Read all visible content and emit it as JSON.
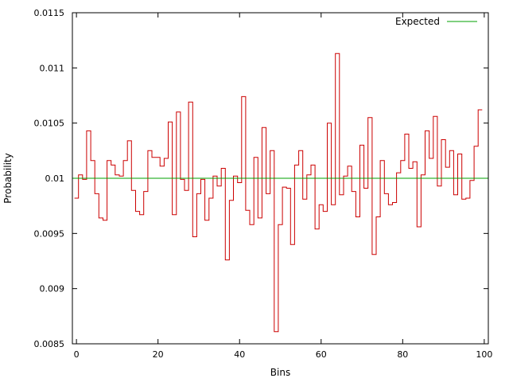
{
  "chart_data": {
    "type": "line",
    "step": true,
    "xlabel": "Bins",
    "ylabel": "Probability",
    "xlim": [
      -1,
      101
    ],
    "ylim": [
      0.0085,
      0.0115
    ],
    "xticks": [
      0,
      20,
      40,
      60,
      80,
      100
    ],
    "xtick_labels": [
      "0",
      "20",
      "40",
      "60",
      "80",
      "100"
    ],
    "yticks": [
      0.0085,
      0.009,
      0.0095,
      0.01,
      0.0105,
      0.011,
      0.0115
    ],
    "ytick_labels": [
      "0.0085",
      "0.009",
      "0.0095",
      "0.01",
      "0.0105",
      "0.011",
      "0.0115"
    ],
    "grid": false,
    "legend": {
      "placement": "top-right",
      "entries": [
        {
          "label": "Expected",
          "color": "#00a000"
        }
      ]
    },
    "series": [
      {
        "color": "#cc0000",
        "x": [
          0,
          1,
          2,
          3,
          4,
          5,
          6,
          7,
          8,
          9,
          10,
          11,
          12,
          13,
          14,
          15,
          16,
          17,
          18,
          19,
          20,
          21,
          22,
          23,
          24,
          25,
          26,
          27,
          28,
          29,
          30,
          31,
          32,
          33,
          34,
          35,
          36,
          37,
          38,
          39,
          40,
          41,
          42,
          43,
          44,
          45,
          46,
          47,
          48,
          49,
          50,
          51,
          52,
          53,
          54,
          55,
          56,
          57,
          58,
          59,
          60,
          61,
          62,
          63,
          64,
          65,
          66,
          67,
          68,
          69,
          70,
          71,
          72,
          73,
          74,
          75,
          76,
          77,
          78,
          79,
          80,
          81,
          82,
          83,
          84,
          85,
          86,
          87,
          88,
          89,
          90,
          91,
          92,
          93,
          94,
          95,
          96,
          97,
          98,
          99
        ],
        "y": [
          0.00982,
          0.01003,
          0.00999,
          0.01043,
          0.01016,
          0.00986,
          0.00964,
          0.00962,
          0.01016,
          0.01012,
          0.01003,
          0.01002,
          0.01016,
          0.01034,
          0.00989,
          0.0097,
          0.00967,
          0.00988,
          0.01025,
          0.01019,
          0.01019,
          0.01011,
          0.01018,
          0.01051,
          0.00967,
          0.0106,
          0.00999,
          0.00989,
          0.01069,
          0.00947,
          0.00986,
          0.00999,
          0.00962,
          0.00982,
          0.01002,
          0.00993,
          0.01009,
          0.00926,
          0.0098,
          0.01002,
          0.00996,
          0.01074,
          0.00971,
          0.00958,
          0.01019,
          0.00964,
          0.01046,
          0.00986,
          0.01025,
          0.00861,
          0.00958,
          0.00992,
          0.00991,
          0.0094,
          0.01012,
          0.01025,
          0.00981,
          0.01003,
          0.01012,
          0.00954,
          0.00976,
          0.0097,
          0.0105,
          0.00976,
          0.01113,
          0.00985,
          0.01002,
          0.01011,
          0.00988,
          0.00965,
          0.0103,
          0.00991,
          0.01055,
          0.00931,
          0.00965,
          0.01016,
          0.00986,
          0.00976,
          0.00978,
          0.01005,
          0.01016,
          0.0104,
          0.01009,
          0.01015,
          0.00956,
          0.01003,
          0.01043,
          0.01018,
          0.01056,
          0.00993,
          0.01035,
          0.0101,
          0.01025,
          0.00985,
          0.01022,
          0.00981,
          0.00982,
          0.00998,
          0.01029,
          0.01062
        ]
      },
      {
        "name": "Expected",
        "color": "#00a000",
        "x": [
          -1,
          101
        ],
        "y": [
          0.01,
          0.01
        ]
      }
    ]
  }
}
